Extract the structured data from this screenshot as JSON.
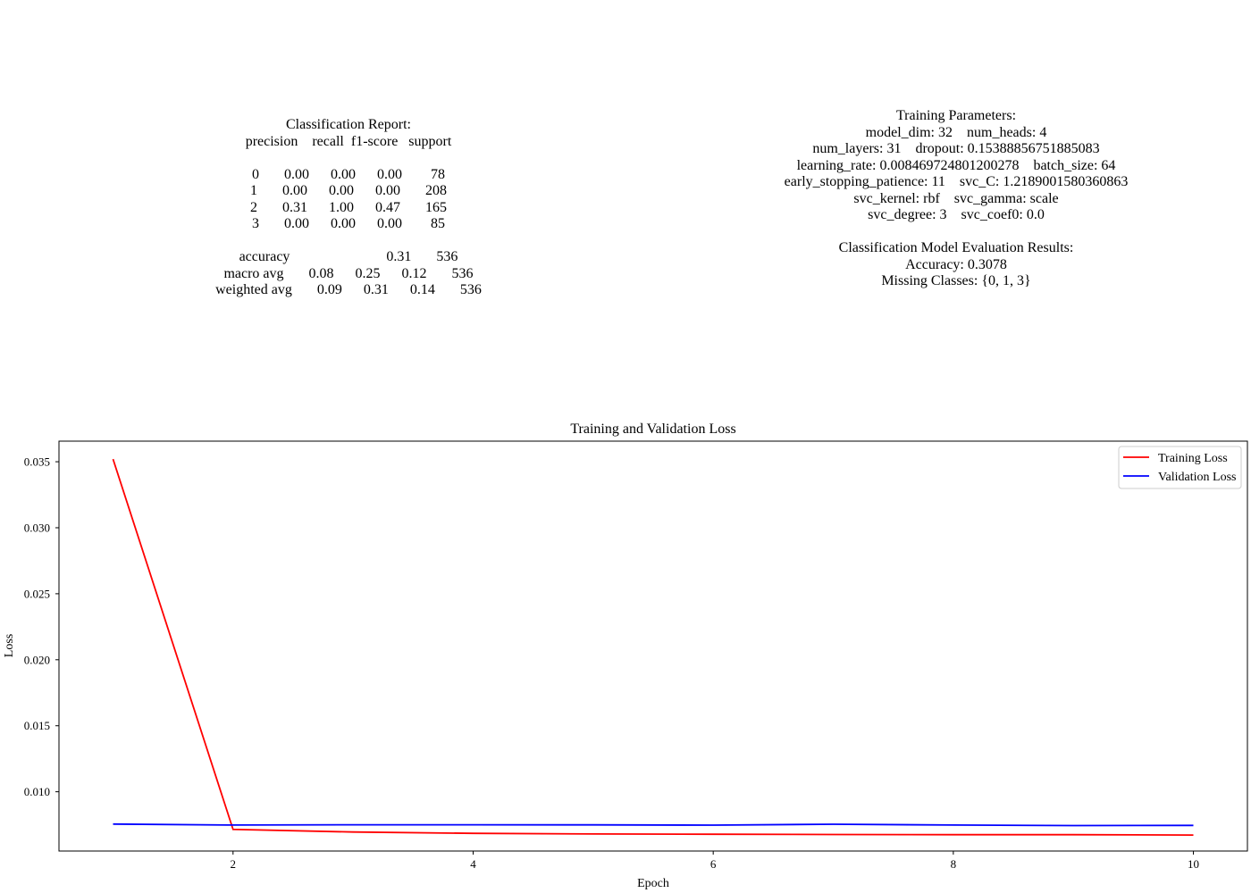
{
  "report": {
    "lines": [
      "Classification Report:",
      "precision    recall  f1-score   support",
      "",
      "0       0.00      0.00      0.00        78",
      "1       0.00      0.00      0.00       208",
      "2       0.31      1.00      0.47       165",
      "3       0.00      0.00      0.00        85",
      "",
      "accuracy                           0.31       536",
      "macro avg       0.08      0.25      0.12       536",
      "weighted avg       0.09      0.31      0.14       536"
    ]
  },
  "params": {
    "lines": [
      "Training Parameters:",
      "model_dim: 32    num_heads: 4",
      "num_layers: 31    dropout: 0.15388856751885083",
      "learning_rate: 0.008469724801200278    batch_size: 64",
      "early_stopping_patience: 11    svc_C: 1.2189001580360863",
      "svc_kernel: rbf    svc_gamma: scale",
      "svc_degree: 3    svc_coef0: 0.0",
      "",
      "Classification Model Evaluation Results:",
      "Accuracy: 0.3078",
      "Missing Classes: {0, 1, 3}"
    ]
  },
  "chart_data": {
    "type": "line",
    "title": "Training and Validation Loss",
    "xlabel": "Epoch",
    "ylabel": "Loss",
    "x": [
      1,
      2,
      3,
      4,
      5,
      6,
      7,
      8,
      9,
      10
    ],
    "series": [
      {
        "name": "Training Loss",
        "color": "#ff0000",
        "values": [
          0.0352,
          0.00715,
          0.00695,
          0.00685,
          0.0068,
          0.00678,
          0.00676,
          0.00675,
          0.00675,
          0.00672
        ]
      },
      {
        "name": "Validation Loss",
        "color": "#0000ff",
        "values": [
          0.00755,
          0.00748,
          0.0075,
          0.0075,
          0.00749,
          0.00747,
          0.00754,
          0.00748,
          0.00744,
          0.00745
        ]
      }
    ],
    "xlim": [
      0.55,
      10.45
    ],
    "ylim": [
      0.00551,
      0.03656
    ],
    "xticks": [
      2,
      4,
      6,
      8,
      10
    ],
    "yticks": [
      0.01,
      0.015,
      0.02,
      0.025,
      0.03,
      0.035
    ],
    "ytick_labels": [
      "0.010",
      "0.015",
      "0.020",
      "0.025",
      "0.030",
      "0.035"
    ],
    "grid": false,
    "legend_position": "top-right"
  }
}
